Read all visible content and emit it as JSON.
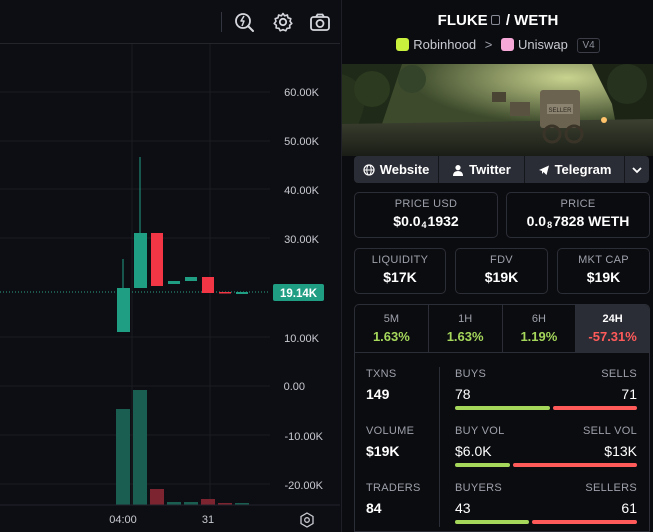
{
  "chart": {
    "y_ticks": [
      "60.00K",
      "50.00K",
      "40.00K",
      "30.00K",
      "20.00K",
      "10.00K",
      "0.00",
      "-10.00K",
      "-20.00K"
    ],
    "x_ticks": [
      "04:00",
      "31"
    ],
    "price_marker": "19.14K",
    "colors": {
      "up": "#1f9e84",
      "down": "#f23645",
      "volume_up": "#1a5e52",
      "volume_down": "#7c2530"
    }
  },
  "toolbar": {
    "icons": [
      "indicator-icon",
      "gear-icon",
      "camera-icon"
    ]
  },
  "pair": {
    "base": "FLUKE",
    "sep": "/",
    "quote": "WETH",
    "chain": "Robinhood",
    "arrow": ">",
    "dex": "Uniswap",
    "version": "V4"
  },
  "links": {
    "website": "Website",
    "twitter": "Twitter",
    "telegram": "Telegram"
  },
  "price_usd": {
    "label": "PRICE USD",
    "prefix": "$0.0",
    "sub": "4",
    "suffix": "1932"
  },
  "price_native": {
    "label": "PRICE",
    "prefix": "0.0",
    "sub": "8",
    "suffix": "7828 WETH"
  },
  "liquidity": {
    "label": "LIQUIDITY",
    "value": "$17K"
  },
  "fdv": {
    "label": "FDV",
    "value": "$19K"
  },
  "mktcap": {
    "label": "MKT CAP",
    "value": "$19K"
  },
  "timeframes": [
    {
      "label": "5M",
      "value": "1.63%"
    },
    {
      "label": "1H",
      "value": "1.63%"
    },
    {
      "label": "6H",
      "value": "1.19%"
    },
    {
      "label": "24H",
      "value": "-57.31%"
    }
  ],
  "txns": {
    "label": "TXNS",
    "value": "149"
  },
  "buys": {
    "label": "BUYS",
    "value": "78",
    "fraction": 0.524
  },
  "sells": {
    "label": "SELLS",
    "value": "71"
  },
  "volume": {
    "label": "VOLUME",
    "value": "$19K"
  },
  "buy_vol": {
    "label": "BUY VOL",
    "value": "$6.0K",
    "fraction": 0.316
  },
  "sell_vol": {
    "label": "SELL VOL",
    "value": "$13K"
  },
  "traders": {
    "label": "TRADERS",
    "value": "84"
  },
  "buyers": {
    "label": "BUYERS",
    "value": "43",
    "fraction": 0.414
  },
  "sellers": {
    "label": "SELLERS",
    "value": "61"
  }
}
